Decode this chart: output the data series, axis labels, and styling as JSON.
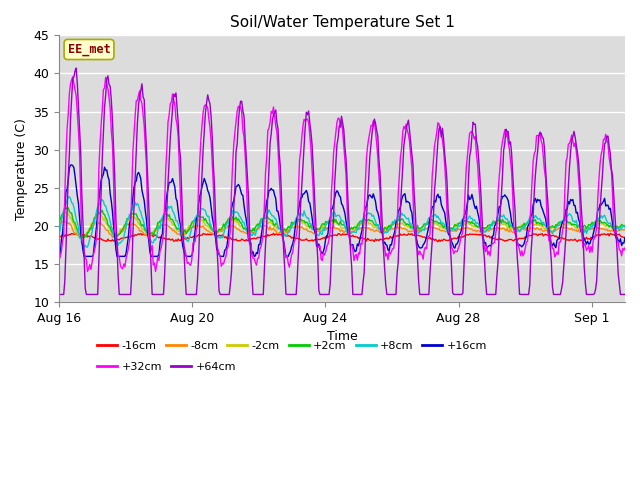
{
  "title": "Soil/Water Temperature Set 1",
  "xlabel": "Time",
  "ylabel": "Temperature (C)",
  "ylim": [
    10,
    45
  ],
  "yticks": [
    10,
    15,
    20,
    25,
    30,
    35,
    40,
    45
  ],
  "plot_bg_color": "#dcdcdc",
  "annotation_text": "EE_met",
  "annotation_color": "#8b0000",
  "annotation_bg": "#ffffcc",
  "annotation_edge": "#aaaa00",
  "legend_entries": [
    "-16cm",
    "-8cm",
    "-2cm",
    "+2cm",
    "+8cm",
    "+16cm",
    "+32cm",
    "+64cm"
  ],
  "line_colors": [
    "#ff0000",
    "#ff8800",
    "#cccc00",
    "#00cc00",
    "#00cccc",
    "#0000cc",
    "#ff00ff",
    "#9900cc"
  ],
  "xtick_labels": [
    "Aug 16",
    "Aug 20",
    "Aug 24",
    "Aug 28",
    "Sep 1"
  ],
  "xtick_positions": [
    0,
    4,
    8,
    12,
    16
  ],
  "xlim": [
    0,
    17
  ],
  "n_points": 500
}
